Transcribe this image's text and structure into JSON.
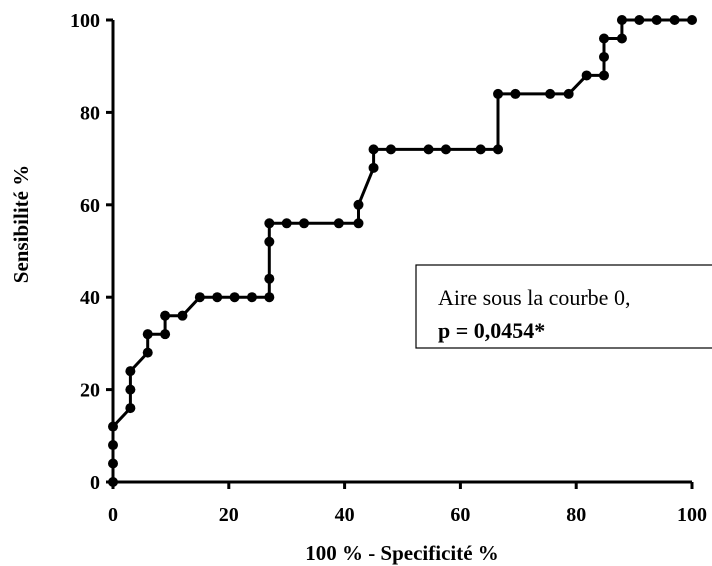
{
  "chart_data": {
    "type": "line",
    "title": "",
    "xlabel": "100 % - Specificité %",
    "ylabel": "Sensibilité %",
    "xlim": [
      0,
      100
    ],
    "ylim": [
      0,
      100
    ],
    "xticks": [
      "0",
      "20",
      "40",
      "60",
      "80",
      "100"
    ],
    "yticks": [
      "0",
      "20",
      "40",
      "60",
      "80",
      "100"
    ],
    "grid": false,
    "legend": "none",
    "line_color": "#000000",
    "series": [
      {
        "points": [
          [
            0,
            0
          ],
          [
            0,
            4
          ],
          [
            0,
            8
          ],
          [
            0,
            12
          ],
          [
            3,
            16
          ],
          [
            3,
            20
          ],
          [
            3,
            24
          ],
          [
            6,
            28
          ],
          [
            6,
            32
          ],
          [
            9,
            32
          ],
          [
            9,
            36
          ],
          [
            12,
            36
          ],
          [
            15,
            40
          ],
          [
            18,
            40
          ],
          [
            21,
            40
          ],
          [
            24,
            40
          ],
          [
            27,
            40
          ],
          [
            27,
            44
          ],
          [
            27,
            52
          ],
          [
            27,
            56
          ],
          [
            30,
            56
          ],
          [
            33,
            56
          ],
          [
            39,
            56
          ],
          [
            42.4,
            56
          ],
          [
            42.4,
            60
          ],
          [
            45,
            68
          ],
          [
            45,
            72
          ],
          [
            48,
            72
          ],
          [
            54.5,
            72
          ],
          [
            57.5,
            72
          ],
          [
            63.5,
            72
          ],
          [
            66.5,
            72
          ],
          [
            66.5,
            84
          ],
          [
            69.5,
            84
          ],
          [
            75.5,
            84
          ],
          [
            78.7,
            84
          ],
          [
            81.8,
            88
          ],
          [
            84.8,
            88
          ],
          [
            84.8,
            92
          ],
          [
            84.8,
            96
          ],
          [
            87.9,
            96
          ],
          [
            87.9,
            100
          ],
          [
            90.9,
            100
          ],
          [
            93.9,
            100
          ],
          [
            97,
            100
          ],
          [
            100,
            100
          ]
        ]
      }
    ],
    "annotation": {
      "line1": "Aire sous la courbe 0,",
      "line2": "p = 0,0454*"
    }
  }
}
